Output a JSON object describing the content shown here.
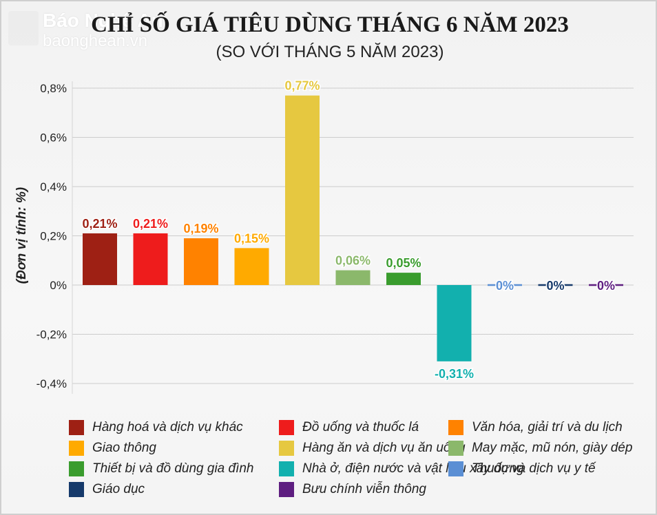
{
  "watermark": {
    "badge": "Báo Nghệ An",
    "name": "Báo Nghệ An",
    "url": "baonghean.vn"
  },
  "chart_data": {
    "type": "bar",
    "title": "CHỈ SỐ GIÁ TIÊU DÙNG THÁNG 6 NĂM 2023",
    "subtitle": "(SO VỚI THÁNG 5 NĂM 2023)",
    "ylabel": "(Đơn vị tính: %)",
    "ylim": [
      -0.4,
      0.8
    ],
    "yticks": [
      0.8,
      0.6,
      0.4,
      0.2,
      0,
      -0.2,
      -0.4
    ],
    "ytick_labels": [
      "0,8%",
      "0,6%",
      "0,4%",
      "0,2%",
      "0%",
      "-0,2%",
      "-0,4%"
    ],
    "grid": true,
    "legend_position": "bottom",
    "categories": [
      "Hàng hoá và dịch vụ khác",
      "Đồ uống và thuốc lá",
      "Văn hóa, giải trí và du lịch",
      "Giao thông",
      "Hàng ăn và dịch vụ ăn uống",
      "May mặc, mũ nón, giày dép",
      "Thiết bị và đồ dùng gia đình",
      "Nhà ở, điện nước và vật liệu xây dựng",
      "Thuốc và dịch vụ y tế",
      "Giáo dục",
      "Bưu chính viễn thông"
    ],
    "values": [
      0.21,
      0.21,
      0.19,
      0.15,
      0.77,
      0.06,
      0.05,
      -0.31,
      0,
      0,
      0
    ],
    "data_labels": [
      "0,21%",
      "0,21%",
      "0,19%",
      "0,15%",
      "0,77%",
      "0,06%",
      "0,05%",
      "-0,31%",
      "0%",
      "0%",
      "0%"
    ],
    "colors": [
      "#9e2014",
      "#ee1c1c",
      "#ff8200",
      "#ffaa00",
      "#e6c840",
      "#8bb86b",
      "#3a9c2e",
      "#12b0ae",
      "#5b8fd4",
      "#163a6b",
      "#5e1e80"
    ]
  }
}
